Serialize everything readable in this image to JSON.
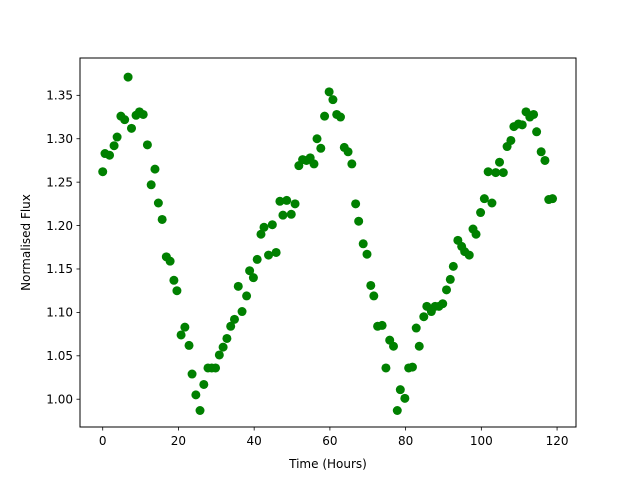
{
  "chart_data": {
    "type": "scatter",
    "title": "",
    "xlabel": "Time (Hours)",
    "ylabel": "Normalised Flux",
    "xlim": [
      -6,
      125
    ],
    "ylim": [
      0.968,
      1.393
    ],
    "xticks": [
      0,
      20,
      40,
      60,
      80,
      100,
      120
    ],
    "yticks": [
      1.0,
      1.05,
      1.1,
      1.15,
      1.2,
      1.25,
      1.3,
      1.35
    ],
    "xtick_labels": [
      "0",
      "20",
      "40",
      "60",
      "80",
      "100",
      "120"
    ],
    "ytick_labels": [
      "1.00",
      "1.05",
      "1.10",
      "1.15",
      "1.20",
      "1.25",
      "1.30",
      "1.35"
    ],
    "grid": false,
    "marker_color": "#008000",
    "points": [
      [
        0.0,
        1.262
      ],
      [
        0.6,
        1.283
      ],
      [
        1.8,
        1.281
      ],
      [
        3.0,
        1.292
      ],
      [
        3.8,
        1.302
      ],
      [
        4.8,
        1.326
      ],
      [
        5.8,
        1.322
      ],
      [
        6.7,
        1.371
      ],
      [
        7.6,
        1.312
      ],
      [
        8.8,
        1.327
      ],
      [
        9.7,
        1.331
      ],
      [
        10.7,
        1.328
      ],
      [
        11.8,
        1.293
      ],
      [
        12.8,
        1.247
      ],
      [
        13.8,
        1.265
      ],
      [
        14.7,
        1.226
      ],
      [
        15.7,
        1.207
      ],
      [
        16.8,
        1.164
      ],
      [
        17.8,
        1.159
      ],
      [
        18.8,
        1.137
      ],
      [
        19.6,
        1.125
      ],
      [
        20.7,
        1.074
      ],
      [
        21.7,
        1.083
      ],
      [
        22.8,
        1.062
      ],
      [
        23.6,
        1.029
      ],
      [
        24.6,
        1.005
      ],
      [
        25.7,
        0.987
      ],
      [
        26.7,
        1.017
      ],
      [
        27.8,
        1.036
      ],
      [
        28.8,
        1.036
      ],
      [
        29.8,
        1.036
      ],
      [
        30.8,
        1.051
      ],
      [
        31.8,
        1.06
      ],
      [
        32.8,
        1.07
      ],
      [
        33.8,
        1.084
      ],
      [
        34.8,
        1.092
      ],
      [
        35.8,
        1.13
      ],
      [
        36.8,
        1.101
      ],
      [
        38.0,
        1.119
      ],
      [
        38.8,
        1.148
      ],
      [
        39.8,
        1.14
      ],
      [
        40.8,
        1.161
      ],
      [
        41.8,
        1.19
      ],
      [
        42.6,
        1.198
      ],
      [
        43.8,
        1.166
      ],
      [
        44.8,
        1.201
      ],
      [
        45.8,
        1.169
      ],
      [
        46.8,
        1.228
      ],
      [
        47.6,
        1.212
      ],
      [
        48.6,
        1.229
      ],
      [
        49.8,
        1.213
      ],
      [
        50.8,
        1.225
      ],
      [
        51.8,
        1.269
      ],
      [
        52.8,
        1.276
      ],
      [
        53.8,
        1.275
      ],
      [
        54.8,
        1.278
      ],
      [
        55.8,
        1.271
      ],
      [
        56.6,
        1.3
      ],
      [
        57.6,
        1.289
      ],
      [
        58.6,
        1.326
      ],
      [
        59.8,
        1.354
      ],
      [
        60.8,
        1.345
      ],
      [
        61.8,
        1.328
      ],
      [
        62.8,
        1.325
      ],
      [
        63.8,
        1.29
      ],
      [
        64.8,
        1.285
      ],
      [
        65.8,
        1.271
      ],
      [
        66.8,
        1.225
      ],
      [
        67.6,
        1.205
      ],
      [
        68.8,
        1.179
      ],
      [
        69.8,
        1.167
      ],
      [
        70.8,
        1.131
      ],
      [
        71.6,
        1.119
      ],
      [
        72.6,
        1.084
      ],
      [
        73.8,
        1.085
      ],
      [
        74.8,
        1.036
      ],
      [
        75.8,
        1.068
      ],
      [
        76.8,
        1.061
      ],
      [
        77.8,
        0.987
      ],
      [
        78.6,
        1.011
      ],
      [
        79.8,
        1.001
      ],
      [
        80.8,
        1.036
      ],
      [
        81.8,
        1.037
      ],
      [
        82.8,
        1.082
      ],
      [
        83.6,
        1.061
      ],
      [
        84.8,
        1.095
      ],
      [
        85.6,
        1.107
      ],
      [
        86.8,
        1.101
      ],
      [
        87.8,
        1.107
      ],
      [
        88.8,
        1.107
      ],
      [
        89.8,
        1.11
      ],
      [
        90.8,
        1.126
      ],
      [
        91.8,
        1.138
      ],
      [
        92.6,
        1.153
      ],
      [
        93.8,
        1.183
      ],
      [
        94.8,
        1.176
      ],
      [
        95.6,
        1.17
      ],
      [
        96.8,
        1.166
      ],
      [
        97.8,
        1.196
      ],
      [
        98.6,
        1.19
      ],
      [
        99.8,
        1.215
      ],
      [
        100.8,
        1.231
      ],
      [
        101.8,
        1.262
      ],
      [
        102.8,
        1.226
      ],
      [
        103.8,
        1.261
      ],
      [
        104.8,
        1.273
      ],
      [
        105.8,
        1.261
      ],
      [
        106.8,
        1.291
      ],
      [
        107.8,
        1.298
      ],
      [
        108.6,
        1.314
      ],
      [
        109.8,
        1.317
      ],
      [
        110.8,
        1.316
      ],
      [
        111.8,
        1.331
      ],
      [
        112.8,
        1.325
      ],
      [
        113.8,
        1.328
      ],
      [
        114.6,
        1.308
      ],
      [
        115.8,
        1.285
      ],
      [
        116.8,
        1.275
      ],
      [
        117.8,
        1.23
      ],
      [
        118.8,
        1.231
      ]
    ]
  }
}
